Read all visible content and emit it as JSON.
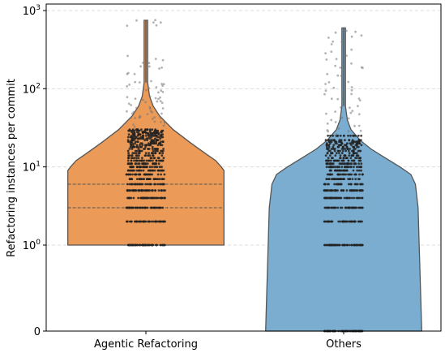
{
  "chart_data": {
    "type": "violin",
    "title": "",
    "xlabel": "",
    "ylabel": "Refactoring instances per commit",
    "y_scale": "symlog",
    "ylim": [
      0,
      1000
    ],
    "y_ticks": [
      {
        "value": 0,
        "base": "0",
        "exp": ""
      },
      {
        "value": 1,
        "base": "10",
        "exp": "0"
      },
      {
        "value": 10,
        "base": "10",
        "exp": "1"
      },
      {
        "value": 100,
        "base": "10",
        "exp": "2"
      },
      {
        "value": 1000,
        "base": "10",
        "exp": "3"
      }
    ],
    "grid": "horizontal-dashed",
    "categories": [
      "Agentic Refactoring",
      "Others"
    ],
    "colors": {
      "agentic": "#ec9a57",
      "others": "#7aadd0",
      "outline": "#555555",
      "points": "#222222"
    },
    "violins": [
      {
        "name": "Agentic Refactoring",
        "min": 1,
        "max": 750,
        "quartile_lines": [
          3,
          6
        ],
        "profile": [
          [
            1,
            0.86
          ],
          [
            2,
            0.86
          ],
          [
            4,
            0.86
          ],
          [
            6,
            0.86
          ],
          [
            9,
            0.86
          ],
          [
            10,
            0.83
          ],
          [
            12,
            0.77
          ],
          [
            15,
            0.65
          ],
          [
            20,
            0.5
          ],
          [
            30,
            0.3
          ],
          [
            45,
            0.15
          ],
          [
            60,
            0.08
          ],
          [
            80,
            0.04
          ],
          [
            120,
            0.02
          ],
          [
            750,
            0.02
          ]
        ]
      },
      {
        "name": "Others",
        "min": 0,
        "max": 600,
        "quartile_lines": [],
        "profile": [
          [
            0,
            0.86
          ],
          [
            3,
            0.82
          ],
          [
            6,
            0.79
          ],
          [
            8,
            0.74
          ],
          [
            10,
            0.62
          ],
          [
            13,
            0.46
          ],
          [
            17,
            0.3
          ],
          [
            22,
            0.18
          ],
          [
            30,
            0.08
          ],
          [
            40,
            0.04
          ],
          [
            60,
            0.02
          ],
          [
            600,
            0.02
          ]
        ]
      }
    ],
    "points": [
      {
        "series": "Agentic Refactoring",
        "discrete": [
          1,
          2,
          3,
          4,
          5,
          6,
          7,
          8,
          9,
          10,
          11,
          12,
          13,
          14,
          15,
          16,
          17,
          18,
          19,
          20,
          21,
          22,
          23,
          24,
          25,
          26,
          27,
          28,
          29,
          30
        ],
        "outliers": [
          35,
          38,
          40,
          42,
          45,
          48,
          50,
          55,
          60,
          65,
          70,
          75,
          80,
          90,
          100,
          110,
          120,
          130,
          150,
          180,
          200,
          250,
          680,
          720
        ]
      },
      {
        "series": "Others",
        "discrete": [
          0,
          1,
          2,
          3,
          4,
          5,
          6,
          7,
          8,
          9,
          10,
          11,
          12,
          13,
          14,
          15,
          16,
          17,
          18,
          19,
          20,
          21,
          22,
          25
        ],
        "outliers": [
          28,
          30,
          35,
          40,
          45,
          50,
          60,
          70,
          80,
          90,
          100,
          120,
          150,
          180,
          200,
          250,
          300,
          400,
          480,
          550
        ]
      }
    ]
  }
}
